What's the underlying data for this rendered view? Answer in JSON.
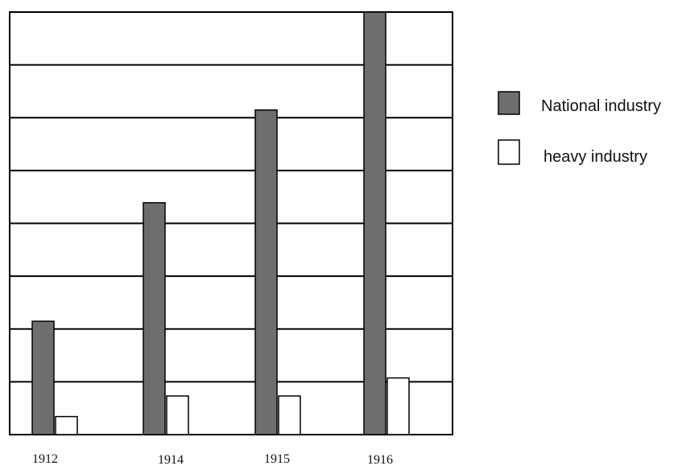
{
  "chart_data": {
    "type": "bar",
    "categories": [
      "1912",
      "1914",
      "1915",
      "1916"
    ],
    "series": [
      {
        "name": "National industry",
        "values": [
          2.2,
          4.5,
          6.3,
          8.2
        ],
        "color": "#6e6e6e"
      },
      {
        "name": "heavy industry",
        "values": [
          0.35,
          0.75,
          0.75,
          1.1
        ],
        "color": "#ffffff"
      }
    ],
    "ylim": [
      0,
      8.2
    ],
    "grid": true,
    "legend": "right",
    "title": "",
    "xlabel": "",
    "ylabel": ""
  }
}
